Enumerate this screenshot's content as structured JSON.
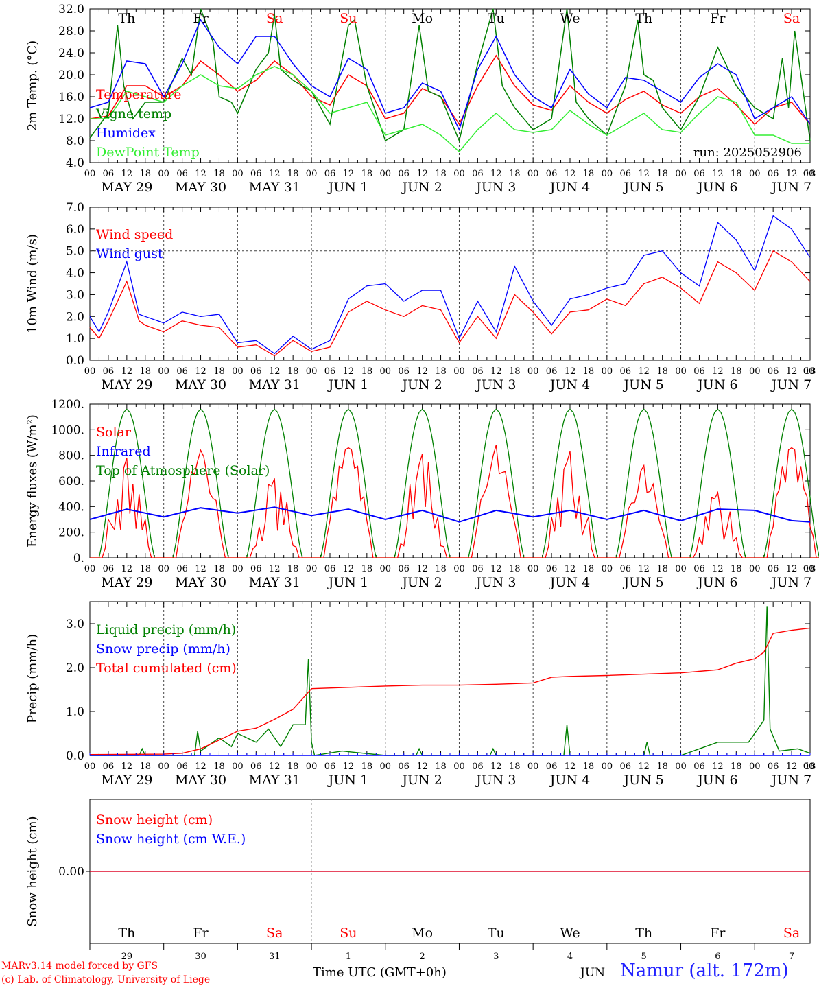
{
  "run_label": "run: 2025052906",
  "days": {
    "abbrev": [
      "Th",
      "Fr",
      "Sa",
      "Su",
      "Mo",
      "Tu",
      "We",
      "Th",
      "Fr",
      "Sa"
    ],
    "colors": [
      "#000000",
      "#000000",
      "#ff0000",
      "#ff0000",
      "#000000",
      "#000000",
      "#000000",
      "#000000",
      "#000000",
      "#ff0000"
    ],
    "date_labels": [
      "MAY 29",
      "MAY 30",
      "MAY 31",
      "JUN  1",
      "JUN  2",
      "JUN  3",
      "JUN  4",
      "JUN  5",
      "JUN  6",
      "JUN  7"
    ],
    "day_numbers": [
      "29",
      "30",
      "31",
      "1",
      "2",
      "3",
      "4",
      "5",
      "6",
      "7"
    ],
    "hour_ticks": [
      "00",
      "06",
      "12",
      "18"
    ],
    "end_tick": "00"
  },
  "chart_data": [
    {
      "type": "line",
      "ylabel": "2m Temp. (°C)",
      "ylim": [
        4.0,
        32.0
      ],
      "yticks": [
        "4.0",
        "8.0",
        "12.0",
        "16.0",
        "20.0",
        "24.0",
        "28.0",
        "32.0"
      ],
      "x_unit": "hours from 2025-05-29 00 UTC",
      "series": [
        {
          "name": "Temperature",
          "color": "#ff0000",
          "x": [
            0,
            6,
            12,
            18,
            24,
            30,
            36,
            42,
            48,
            54,
            60,
            66,
            72,
            78,
            84,
            90,
            96,
            102,
            108,
            114,
            120,
            126,
            132,
            138,
            144,
            150,
            156,
            162,
            168,
            174,
            180,
            186,
            192,
            198,
            204,
            210,
            216,
            222,
            228,
            234
          ],
          "values": [
            12,
            12.5,
            18,
            18,
            16,
            18,
            22.5,
            20,
            17,
            19,
            22.5,
            20,
            16,
            14.5,
            20,
            18,
            12,
            13,
            17.5,
            16,
            11,
            18,
            23.5,
            18,
            14.5,
            13.5,
            18,
            15,
            13,
            15.5,
            17,
            14.5,
            13,
            16,
            17.5,
            14.5,
            11,
            14,
            15,
            11
          ]
        },
        {
          "name": "Vigne temp",
          "color": "#008000",
          "x": [
            0,
            6,
            9,
            11,
            14,
            18,
            24,
            30,
            33,
            36,
            40,
            42,
            46,
            48,
            54,
            58,
            60,
            62,
            66,
            72,
            78,
            84,
            86,
            90,
            96,
            102,
            107,
            110,
            114,
            120,
            126,
            131,
            134,
            138,
            144,
            150,
            155,
            158,
            162,
            168,
            174,
            178,
            180,
            183,
            186,
            192,
            198,
            204,
            210,
            216,
            222,
            225,
            227,
            229,
            231,
            234
          ],
          "values": [
            8.5,
            13,
            29,
            18,
            12,
            15,
            15,
            23,
            20,
            32,
            26,
            16,
            15,
            13,
            21,
            24,
            31,
            21,
            19,
            17,
            11,
            29,
            30,
            18,
            8,
            10,
            29,
            17,
            16,
            8,
            22,
            32,
            18,
            14,
            10,
            12,
            32,
            15,
            12,
            9,
            18,
            30,
            20,
            19,
            14,
            10,
            16,
            25,
            18,
            14,
            12,
            23,
            14,
            28,
            20,
            8
          ]
        },
        {
          "name": "Humidex",
          "color": "#0000ff",
          "x": [
            0,
            6,
            12,
            18,
            24,
            30,
            36,
            42,
            48,
            54,
            60,
            66,
            72,
            78,
            84,
            90,
            96,
            102,
            108,
            114,
            120,
            126,
            132,
            138,
            144,
            150,
            156,
            162,
            168,
            174,
            180,
            186,
            192,
            198,
            204,
            210,
            216,
            222,
            228,
            234
          ],
          "values": [
            14,
            15,
            22.5,
            22,
            16,
            22,
            30,
            25,
            22,
            27,
            27,
            22,
            18,
            16,
            23,
            21,
            13,
            14,
            18.5,
            17,
            10,
            21,
            27,
            20,
            16,
            14,
            21,
            16.5,
            14,
            19.5,
            19,
            17,
            15,
            19.5,
            22,
            20,
            12,
            14,
            16,
            11
          ]
        },
        {
          "name": "DewPoint Temp",
          "color": "#33ee33",
          "x": [
            0,
            6,
            12,
            18,
            24,
            30,
            36,
            42,
            48,
            54,
            60,
            66,
            72,
            78,
            84,
            90,
            96,
            102,
            108,
            114,
            120,
            126,
            132,
            138,
            144,
            150,
            156,
            162,
            168,
            174,
            180,
            186,
            192,
            198,
            204,
            210,
            216,
            222,
            228,
            234
          ],
          "values": [
            12,
            12,
            17,
            16,
            15,
            18,
            20,
            18,
            17.5,
            20,
            21.5,
            20,
            17,
            13,
            14,
            15,
            9,
            10,
            11,
            9,
            6,
            10,
            13,
            10,
            9.5,
            10,
            13.5,
            11,
            9,
            11,
            13,
            10,
            9.5,
            13,
            16,
            15,
            9,
            9,
            7.5,
            7.5
          ]
        }
      ]
    },
    {
      "type": "line",
      "ylabel": "10m Wind (m/s)",
      "ylim": [
        0.0,
        7.0
      ],
      "yticks": [
        "0.0",
        "1.0",
        "2.0",
        "3.0",
        "4.0",
        "5.0",
        "6.0",
        "7.0"
      ],
      "ref_line": 5.0,
      "series": [
        {
          "name": "Wind speed",
          "color": "#ff0000",
          "x": [
            0,
            3,
            6,
            12,
            16,
            18,
            24,
            30,
            36,
            42,
            48,
            54,
            60,
            66,
            72,
            78,
            84,
            90,
            96,
            102,
            108,
            114,
            120,
            126,
            132,
            138,
            144,
            150,
            156,
            162,
            168,
            174,
            180,
            186,
            192,
            198,
            204,
            210,
            216,
            222,
            228,
            234
          ],
          "values": [
            1.5,
            1.0,
            1.8,
            3.6,
            1.8,
            1.6,
            1.3,
            1.8,
            1.6,
            1.5,
            0.6,
            0.7,
            0.2,
            0.9,
            0.4,
            0.6,
            2.2,
            2.7,
            2.3,
            2.0,
            2.5,
            2.3,
            0.8,
            2.0,
            1.0,
            3.0,
            2.2,
            1.2,
            2.2,
            2.3,
            2.8,
            2.5,
            3.5,
            3.8,
            3.3,
            2.6,
            4.5,
            4.0,
            3.2,
            5.0,
            4.5,
            3.6
          ]
        },
        {
          "name": "Wind gust",
          "color": "#0000ff",
          "x": [
            0,
            3,
            6,
            12,
            16,
            18,
            24,
            30,
            36,
            42,
            48,
            54,
            60,
            66,
            72,
            78,
            84,
            90,
            96,
            102,
            108,
            114,
            120,
            126,
            132,
            138,
            144,
            150,
            156,
            162,
            168,
            174,
            180,
            186,
            192,
            198,
            204,
            210,
            216,
            222,
            228,
            234
          ],
          "values": [
            2.0,
            1.3,
            2.2,
            4.5,
            2.1,
            2.0,
            1.7,
            2.2,
            2.0,
            2.1,
            0.8,
            0.9,
            0.3,
            1.1,
            0.5,
            0.9,
            2.8,
            3.4,
            3.5,
            2.7,
            3.2,
            3.2,
            1.0,
            2.7,
            1.3,
            4.3,
            2.7,
            1.6,
            2.8,
            3.0,
            3.3,
            3.5,
            4.8,
            5.0,
            4.0,
            3.4,
            6.3,
            5.5,
            4.1,
            6.6,
            6.0,
            4.7
          ]
        }
      ]
    },
    {
      "type": "line",
      "ylabel": "Energy fluxes (W/m²)",
      "ylim": [
        0,
        1200
      ],
      "yticks": [
        "0.",
        "200.",
        "400.",
        "600.",
        "800.",
        "1000.",
        "1200."
      ],
      "series": [
        {
          "name": "Solar",
          "color": "#ff0000",
          "peaks": [
            780,
            840,
            620,
            860,
            810,
            880,
            830,
            720,
            510,
            860
          ]
        },
        {
          "name": "Infrared",
          "color": "#0000ff",
          "x": [
            0,
            12,
            24,
            36,
            48,
            60,
            72,
            84,
            96,
            108,
            120,
            132,
            144,
            156,
            168,
            180,
            192,
            204,
            216,
            228,
            234
          ],
          "values": [
            300,
            380,
            320,
            390,
            350,
            395,
            330,
            380,
            300,
            370,
            280,
            370,
            320,
            370,
            300,
            370,
            290,
            380,
            370,
            290,
            280
          ]
        },
        {
          "name": "Top of Atmosphere (Solar)",
          "color": "#008000",
          "peak": 1160
        }
      ]
    },
    {
      "type": "line",
      "ylabel": "Precip (mm/h)",
      "ylim": [
        0.0,
        3.5
      ],
      "yticks": [
        "0.0",
        "1.0",
        "2.0",
        "3.0"
      ],
      "series": [
        {
          "name": "Liquid precip (mm/h)",
          "color": "#008000",
          "x": [
            0,
            16,
            17,
            18,
            34,
            35,
            36,
            42,
            46,
            48,
            54,
            58,
            62,
            66,
            70,
            71,
            72,
            73,
            82,
            96,
            106,
            107,
            108,
            130,
            131,
            132,
            154,
            155,
            156,
            180,
            181,
            182,
            192,
            204,
            210,
            214,
            219,
            220,
            221,
            224,
            230,
            234
          ],
          "values": [
            0,
            0,
            0.15,
            0,
            0,
            0.55,
            0.1,
            0.4,
            0.2,
            0.5,
            0.3,
            0.6,
            0.2,
            0.7,
            0.7,
            2.2,
            0.3,
            0,
            0.1,
            0,
            0,
            0.15,
            0,
            0,
            0.15,
            0,
            0,
            0.7,
            0,
            0,
            0.3,
            0,
            0,
            0.3,
            0.3,
            0.3,
            0.8,
            3.4,
            0.6,
            0.1,
            0.15,
            0.05
          ]
        },
        {
          "name": "Snow precip (mm/h)",
          "color": "#0000ff",
          "x": [
            0,
            234
          ],
          "values": [
            0,
            0
          ]
        },
        {
          "name": "Total cumulated (cm)",
          "color": "#ff0000",
          "x": [
            0,
            24,
            30,
            36,
            42,
            48,
            54,
            60,
            66,
            72,
            84,
            96,
            108,
            120,
            132,
            144,
            150,
            156,
            168,
            180,
            192,
            204,
            210,
            216,
            219,
            222,
            228,
            234
          ],
          "values": [
            0.02,
            0.03,
            0.05,
            0.15,
            0.35,
            0.55,
            0.62,
            0.82,
            1.05,
            1.52,
            1.55,
            1.58,
            1.6,
            1.6,
            1.62,
            1.65,
            1.78,
            1.8,
            1.82,
            1.85,
            1.88,
            1.95,
            2.1,
            2.2,
            2.35,
            2.78,
            2.85,
            2.9
          ]
        }
      ]
    },
    {
      "type": "line",
      "ylabel": "Snow height (cm)",
      "yticks": [
        "0.00"
      ],
      "series": [
        {
          "name": "Snow height (cm)",
          "color": "#ff0000",
          "x": [
            0,
            234
          ],
          "values": [
            0,
            0
          ]
        },
        {
          "name": "Snow height (cm W.E.)",
          "color": "#0000ff",
          "x": [
            0,
            234
          ],
          "values": [
            0,
            0
          ]
        }
      ]
    }
  ],
  "footer": {
    "model": "MARv3.14 model forced by GFS",
    "copyright": "(c) Lab. of Climatology, University of Liege",
    "time_axis": "Time UTC (GMT+0h)",
    "month": "JUN",
    "location": "Namur (alt. 172m)"
  }
}
